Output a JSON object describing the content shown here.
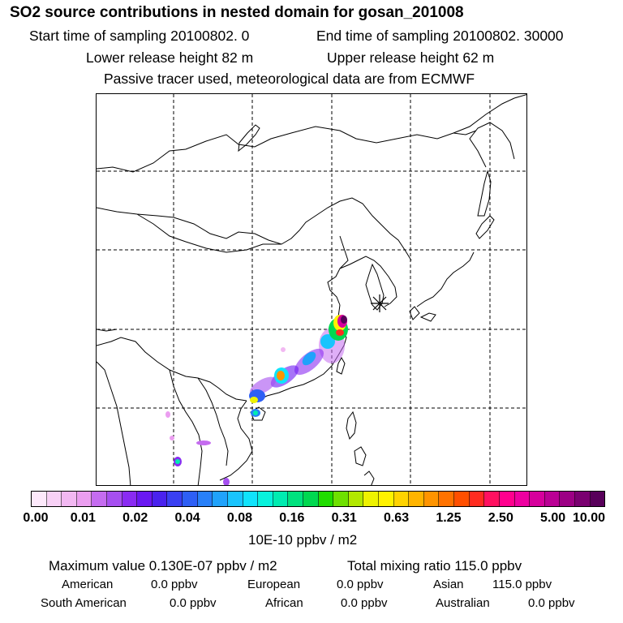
{
  "header": {
    "title": "SO2 source contributions in nested domain for gosan_201008",
    "start_label": "Start time of sampling 20100802.     0",
    "end_label": "End time of sampling 20100802. 30000",
    "lower_release": "Lower release height   82 m",
    "upper_release": "Upper release height   62 m",
    "note": "Passive tracer used, meteorological data are from ECMWF"
  },
  "map": {
    "receptor_marker": "asterisk-icon",
    "grid": {
      "lon_lines": [
        90,
        100,
        110,
        120,
        130,
        140
      ],
      "lat_lines": [
        10,
        20,
        30,
        40,
        50
      ]
    }
  },
  "colorbar": {
    "ticks": [
      "0.00",
      "0.01",
      "0.02",
      "0.04",
      "0.08",
      "0.16",
      "0.31",
      "0.63",
      "1.25",
      "2.50",
      "5.00",
      "10.00"
    ],
    "colors": [
      "#fde9fb",
      "#f8d1f6",
      "#f2b8f2",
      "#eb9ef0",
      "#c56cf0",
      "#a64ff0",
      "#8a2bf2",
      "#6a18f2",
      "#4a22ee",
      "#3a40f2",
      "#2e5ff5",
      "#2880f8",
      "#20a2fb",
      "#19c4fd",
      "#10e3fb",
      "#08f2dc",
      "#00ecb1",
      "#00e27e",
      "#00d850",
      "#20dc00",
      "#6ee000",
      "#b2e800",
      "#eef200",
      "#fff200",
      "#ffd300",
      "#ffb400",
      "#ff9400",
      "#ff7200",
      "#ff4f00",
      "#ff2c20",
      "#ff1060",
      "#ff008e",
      "#ee00a0",
      "#d6009c",
      "#ba0094",
      "#9c0084",
      "#7a0070",
      "#58005a"
    ],
    "unit": "10E-10 ppbv / m2"
  },
  "summary": {
    "maximum": "Maximum value  0.130E-07 ppbv / m2",
    "total": "Total mixing ratio      115.0 ppbv",
    "american": {
      "label": "American",
      "value": "0.0 ppbv"
    },
    "european": {
      "label": "European",
      "value": "0.0 ppbv"
    },
    "asian": {
      "label": "Asian",
      "value": "115.0 ppbv"
    },
    "south_american": {
      "label": "South American",
      "value": "0.0 ppbv"
    },
    "african": {
      "label": "African",
      "value": "0.0 ppbv"
    },
    "australian": {
      "label": "Australian",
      "value": "0.0 ppbv"
    }
  }
}
